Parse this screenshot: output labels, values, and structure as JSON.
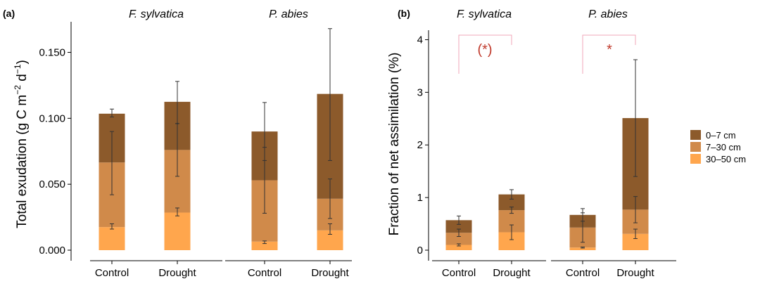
{
  "chart_data": [
    {
      "panel": "(a)",
      "type": "bar",
      "stacked": true,
      "facets": [
        "F. sylvatica",
        "P. abies"
      ],
      "categories": [
        "Control",
        "Drought"
      ],
      "ylabel_main": "Total exudation (g C  m",
      "ylabel_exp1": "−2",
      "ylabel_mid": "  d",
      "ylabel_exp2": "−1",
      "ylabel_end": ")",
      "ylim": [
        0,
        0.17
      ],
      "yticks": [
        0.0,
        0.05,
        0.1,
        0.15
      ],
      "ytick_labels": [
        "0.000",
        "0.050",
        "0.100",
        "0.150"
      ],
      "series": [
        {
          "name": "30–50 cm",
          "values": [
            [
              0.0175,
              0.0285
            ],
            [
              0.0065,
              0.015
            ]
          ],
          "err_center": [
            [
              0.018,
              0.029
            ],
            [
              0.006,
              0.016
            ]
          ],
          "err": [
            [
              0.002,
              0.003
            ],
            [
              0.001,
              0.004
            ]
          ]
        },
        {
          "name": "7–30 cm",
          "values": [
            [
              0.049,
              0.0475
            ],
            [
              0.0465,
              0.024
            ]
          ],
          "err_center": [
            [
              0.066,
              0.076
            ],
            [
              0.053,
              0.039
            ]
          ],
          "err": [
            [
              0.024,
              0.02
            ],
            [
              0.025,
              0.015
            ]
          ]
        },
        {
          "name": "0–7 cm",
          "values": [
            [
              0.037,
              0.0365
            ],
            [
              0.037,
              0.0795
            ]
          ],
          "err_center": [
            [
              0.104,
              0.112
            ],
            [
              0.09,
              0.118
            ]
          ],
          "err": [
            [
              0.003,
              0.016
            ],
            [
              0.022,
              0.05
            ]
          ]
        }
      ],
      "center_markers": [
        [
          0.0,
          0.096
        ],
        [
          0.0,
          0.0
        ]
      ]
    },
    {
      "panel": "(b)",
      "type": "bar",
      "stacked": true,
      "facets": [
        "F. sylvatica",
        "P. abies"
      ],
      "categories": [
        "Control",
        "Drought"
      ],
      "ylabel": "Fraction of net assimilation (%)",
      "ylim": [
        0,
        4.1
      ],
      "yticks": [
        0,
        1,
        2,
        3,
        4
      ],
      "ytick_labels": [
        "0",
        "1",
        "2",
        "3",
        "4"
      ],
      "series": [
        {
          "name": "30–50 cm",
          "values": [
            [
              0.1,
              0.34
            ],
            [
              0.05,
              0.31
            ]
          ],
          "err_center": [
            [
              0.1,
              0.34
            ],
            [
              0.05,
              0.31
            ]
          ],
          "err": [
            [
              0.02,
              0.14
            ],
            [
              0.01,
              0.09
            ]
          ]
        },
        {
          "name": "7–30 cm",
          "values": [
            [
              0.23,
              0.42
            ],
            [
              0.38,
              0.46
            ]
          ],
          "err_center": [
            [
              0.33,
              0.76
            ],
            [
              0.43,
              0.77
            ]
          ],
          "err": [
            [
              0.07,
              0.06
            ],
            [
              0.28,
              0.25
            ]
          ]
        },
        {
          "name": "0–7 cm",
          "values": [
            [
              0.24,
              0.3
            ],
            [
              0.24,
              1.74
            ]
          ],
          "err_center": [
            [
              0.57,
              1.06
            ],
            [
              0.67,
              2.51
            ]
          ],
          "err": [
            [
              0.08,
              0.09
            ],
            [
              0.12,
              1.11
            ]
          ]
        }
      ],
      "significance": [
        "(*)",
        "*"
      ]
    }
  ],
  "panel_labels": [
    "(a)",
    "(b)"
  ],
  "legend": [
    "0–7 cm",
    "7–30 cm",
    "30–50 cm"
  ],
  "colors": {
    "0–7 cm": "#8c5a2b",
    "7–30 cm": "#d08a4a",
    "30–50 cm": "#ffa64d",
    "significance": "#c0392b",
    "bracket": "#f2a7b8",
    "axis": "#000000",
    "error": "#333333"
  }
}
